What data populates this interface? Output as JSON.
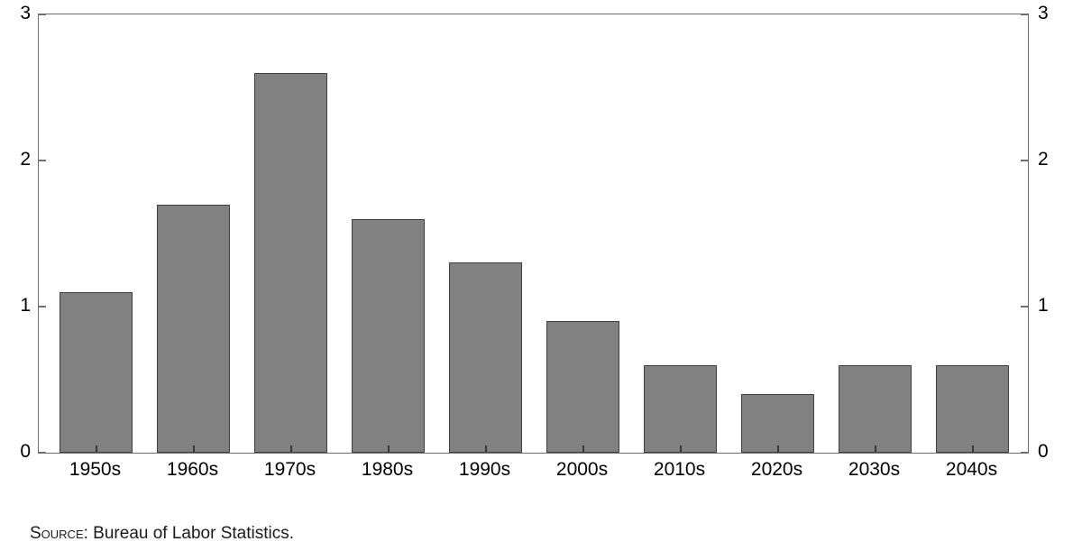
{
  "chart_data": {
    "type": "bar",
    "title": "",
    "xlabel": "",
    "ylabel": "",
    "categories": [
      "1950s",
      "1960s",
      "1970s",
      "1980s",
      "1990s",
      "2000s",
      "2010s",
      "2020s",
      "2030s",
      "2040s"
    ],
    "values": [
      1.1,
      1.7,
      2.6,
      1.6,
      1.3,
      0.9,
      0.6,
      0.4,
      0.6,
      0.6
    ],
    "ylim": [
      0,
      3
    ],
    "yticks": [
      0,
      1,
      2,
      3
    ],
    "ytick_labels_left": [
      "0",
      "1",
      "2",
      "3"
    ],
    "ytick_labels_right": [
      "0",
      "1",
      "2",
      "3"
    ],
    "grid": false,
    "legend": "none",
    "dual_axis_labels": true,
    "bar_fill_color": "#818181",
    "bar_edge_color": "#404040",
    "frame_color": "#6f6f6f"
  },
  "source_note": {
    "label": "Source:",
    "text": " Bureau of Labor Statistics."
  },
  "colors": {
    "background": "#ffffff",
    "text": "#000000"
  }
}
